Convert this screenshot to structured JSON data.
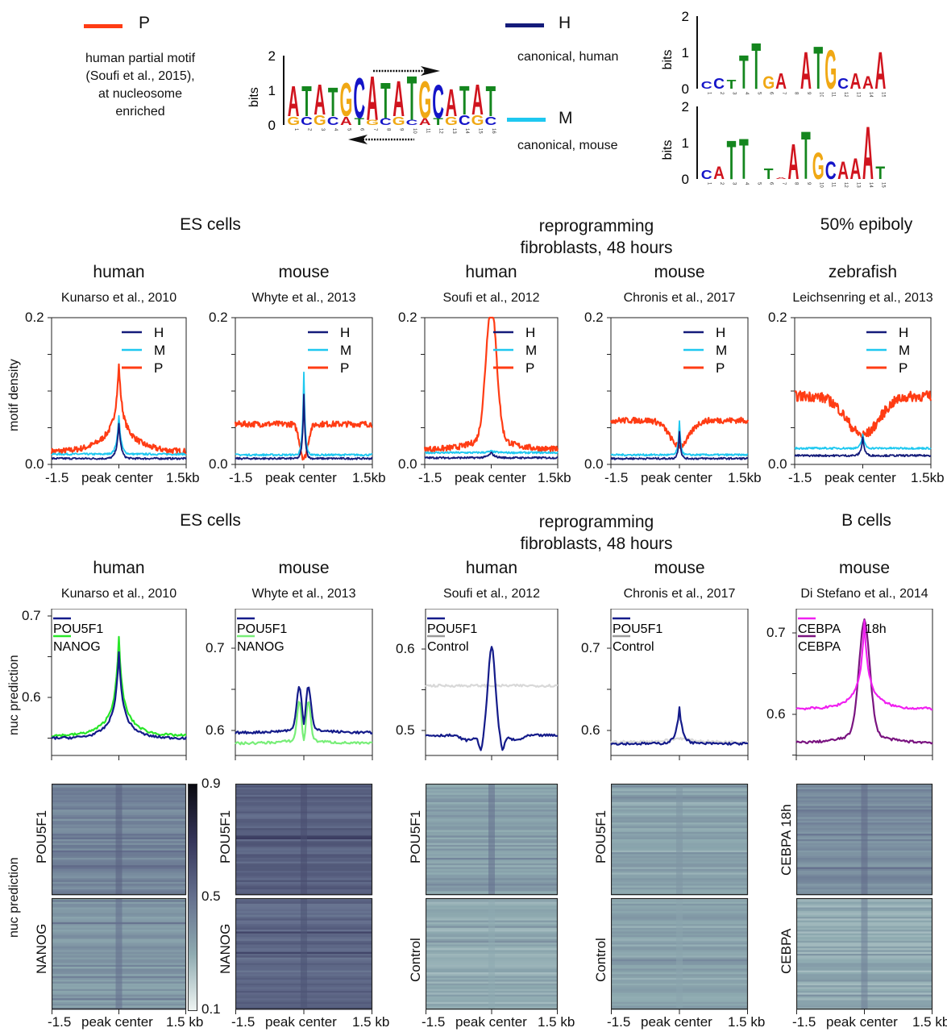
{
  "motifs": {
    "P": {
      "label": "P",
      "color": "#ff3c14",
      "description": [
        "human partial motif",
        "(Soufi et al., 2015),",
        "at nucleosome",
        "enriched"
      ],
      "logo": {
        "ylabel": "bits",
        "yticks": [
          "2",
          "1",
          "0"
        ],
        "sequence_top": "ATATGCATATGCATAT",
        "sequence_bottom": "GCGCATGCGCATGCGC",
        "positions": [
          "1",
          "2",
          "3",
          "4",
          "5",
          "6",
          "7",
          "8",
          "9",
          "10",
          "11",
          "12",
          "13",
          "14",
          "15",
          "16"
        ],
        "top_heights": [
          0.9,
          0.9,
          0.9,
          0.85,
          1.0,
          1.2,
          1.3,
          1.05,
          1.05,
          1.3,
          1.1,
          1.0,
          0.8,
          0.85,
          0.9,
          0.9
        ],
        "bottom_heights": [
          0.25,
          0.25,
          0.3,
          0.25,
          0.25,
          0.2,
          0.15,
          0.2,
          0.25,
          0.15,
          0.2,
          0.2,
          0.25,
          0.3,
          0.3,
          0.25
        ]
      }
    },
    "H": {
      "label": "H",
      "color": "#141b7a",
      "description": [
        "canonical, human"
      ],
      "logo": {
        "ylabel": "bits",
        "yticks": [
          "2",
          "1",
          "0"
        ],
        "sequence_top": "CCTTTGA-ATGCAAA",
        "positions": [
          "1",
          "2",
          "3",
          "4",
          "5",
          "6",
          "7",
          "8",
          "9",
          "10",
          "11",
          "12",
          "13",
          "14",
          "15"
        ],
        "top_heights": [
          0.2,
          0.3,
          0.25,
          0.95,
          1.3,
          0.35,
          0.45,
          0.0,
          1.05,
          1.2,
          1.1,
          0.3,
          0.45,
          0.35,
          1.05
        ]
      }
    },
    "M": {
      "label": "M",
      "color": "#1ec8f0",
      "description": [
        "canonical, mouse"
      ],
      "logo": {
        "ylabel": "bits",
        "yticks": [
          "2",
          "1",
          "0"
        ],
        "sequence_top": "CATT-TAATGCAAAT",
        "positions": [
          "1",
          "2",
          "3",
          "4",
          "5",
          "6",
          "7",
          "8",
          "9",
          "10",
          "11",
          "12",
          "13",
          "14",
          "15"
        ],
        "top_heights": [
          0.25,
          0.35,
          1.1,
          1.15,
          0.05,
          0.3,
          0.05,
          1.0,
          1.35,
          0.75,
          0.5,
          0.5,
          0.6,
          1.5,
          0.35
        ]
      }
    }
  },
  "row1": {
    "groups": [
      {
        "title": [
          "ES cells"
        ],
        "center_panel_index": 0.5
      },
      {
        "title": [
          "reprogramming",
          "fibroblasts, 48 hours"
        ],
        "center_panel_index": 2.5
      },
      {
        "title": [
          "50% epiboly"
        ],
        "center_panel_index": 4
      }
    ],
    "ylabel": "motif density"
  },
  "row2": {
    "groups": [
      {
        "title": [
          "ES cells"
        ]
      },
      {
        "title": [
          "reprogramming",
          "fibroblasts, 48 hours"
        ]
      },
      {
        "title": [
          "B cells"
        ]
      }
    ],
    "ylabel": "nuc prediction"
  },
  "heatmap_ylabel": "nuc prediction",
  "colorbar": {
    "ticks": [
      "0.9",
      "0.5",
      "0.1"
    ],
    "min": 0.1,
    "max": 0.9
  },
  "xaxis": {
    "left": "-1.5",
    "center": "peak center",
    "right_motif": "1.5kb",
    "right_heat": "1.5 kb"
  },
  "chart_data": [
    {
      "type": "line",
      "title": "human",
      "subtitle": "Kunarso et al., 2010",
      "xlabel": "peak center",
      "xticklabels": [
        "-1.5",
        "peak center",
        "1.5kb"
      ],
      "xlim": [
        -1.5,
        1.5
      ],
      "ylim": [
        0.0,
        0.2
      ],
      "yticklabels": [
        "0.2",
        "0.0"
      ],
      "ylabel": "motif density",
      "legend": "top-right",
      "series": [
        {
          "name": "H",
          "shape": "peak",
          "base": 0.008,
          "peak": 0.055,
          "width": 0.05
        },
        {
          "name": "M",
          "shape": "peak",
          "base": 0.014,
          "peak": 0.066,
          "width": 0.05
        },
        {
          "name": "P",
          "shape": "broad-peak",
          "base": 0.017,
          "peak": 0.135,
          "width": 0.35
        }
      ]
    },
    {
      "type": "line",
      "title": "mouse",
      "subtitle": "Whyte et al., 2013",
      "xticklabels": [
        "-1.5",
        "peak center",
        "1.5kb"
      ],
      "xlim": [
        -1.5,
        1.5
      ],
      "ylim": [
        0.0,
        0.2
      ],
      "yticklabels": [
        "0.2",
        "0.0"
      ],
      "legend": "top-right",
      "series": [
        {
          "name": "H",
          "shape": "peak",
          "base": 0.008,
          "peak": 0.095,
          "width": 0.03
        },
        {
          "name": "M",
          "shape": "peak",
          "base": 0.013,
          "peak": 0.125,
          "width": 0.03
        },
        {
          "name": "P",
          "shape": "dip",
          "base": 0.055,
          "peak": 0.008,
          "width": 0.12
        }
      ]
    },
    {
      "type": "line",
      "title": "human",
      "subtitle": "Soufi et al., 2012",
      "xticklabels": [
        "-1.5",
        "peak center",
        "1.5kb"
      ],
      "xlim": [
        -1.5,
        1.5
      ],
      "ylim": [
        0.0,
        0.2
      ],
      "yticklabels": [
        "0.2",
        "0.0"
      ],
      "legend": "top-right",
      "series": [
        {
          "name": "H",
          "shape": "peak",
          "base": 0.009,
          "peak": 0.016,
          "width": 0.08
        },
        {
          "name": "M",
          "shape": "flat",
          "base": 0.016,
          "peak": 0.018,
          "width": 0.1
        },
        {
          "name": "P",
          "shape": "sharp-peak",
          "base": 0.02,
          "peak": 0.195,
          "width": 0.12
        }
      ]
    },
    {
      "type": "line",
      "title": "mouse",
      "subtitle": "Chronis et al., 2017",
      "xticklabels": [
        "-1.5",
        "peak center",
        "1.5kb"
      ],
      "xlim": [
        -1.5,
        1.5
      ],
      "ylim": [
        0.0,
        0.2
      ],
      "yticklabels": [
        "0.2",
        "0.0"
      ],
      "legend": "top-right",
      "series": [
        {
          "name": "H",
          "shape": "peak",
          "base": 0.008,
          "peak": 0.045,
          "width": 0.03
        },
        {
          "name": "M",
          "shape": "peak",
          "base": 0.013,
          "peak": 0.058,
          "width": 0.03
        },
        {
          "name": "P",
          "shape": "dip",
          "base": 0.06,
          "peak": 0.025,
          "width": 0.3
        }
      ]
    },
    {
      "type": "line",
      "title": "zebrafish",
      "subtitle": "Leichsenring et al., 2013",
      "xticklabels": [
        "-1.5",
        "peak center",
        "1.5kb"
      ],
      "xlim": [
        -1.5,
        1.5
      ],
      "ylim": [
        0.0,
        0.2
      ],
      "yticklabels": [
        "0.2",
        "0.0"
      ],
      "legend": "top-right",
      "series": [
        {
          "name": "H",
          "shape": "peak",
          "base": 0.012,
          "peak": 0.037,
          "width": 0.04
        },
        {
          "name": "M",
          "shape": "peak",
          "base": 0.022,
          "peak": 0.042,
          "width": 0.04
        },
        {
          "name": "P",
          "shape": "dip",
          "base": 0.093,
          "peak": 0.04,
          "width": 0.5
        }
      ]
    },
    {
      "type": "line",
      "title": "human",
      "subtitle": "Kunarso et al., 2010",
      "ylabel": "nuc prediction",
      "yticklabels": [
        "0.7",
        "0.6"
      ],
      "ylim": [
        0.548,
        0.71
      ],
      "xlim": [
        -1.5,
        1.5
      ],
      "legend": "top-left",
      "series": [
        {
          "name": "POU5F1",
          "color": "#141b8a",
          "shape": "broad-peak",
          "base": 0.55,
          "peak": 0.655,
          "width": 0.25
        },
        {
          "name": "NANOG",
          "color": "#28e628",
          "shape": "broad-peak",
          "base": 0.553,
          "peak": 0.673,
          "width": 0.28
        }
      ]
    },
    {
      "type": "line",
      "title": "mouse",
      "subtitle": "Whyte et al., 2013",
      "yticklabels": [
        "0.7",
        "0.6"
      ],
      "ylim": [
        0.58,
        0.747
      ],
      "xlim": [
        -1.5,
        1.5
      ],
      "legend": "top-left",
      "series": [
        {
          "name": "POU5F1",
          "color": "#141b8a",
          "shape": "double-peak",
          "base": 0.597,
          "peak": 0.651,
          "width": 0.08
        },
        {
          "name": "NANOG",
          "color": "#78ee78",
          "shape": "double-peak",
          "base": 0.584,
          "peak": 0.633,
          "width": 0.07
        }
      ]
    },
    {
      "type": "line",
      "title": "human",
      "subtitle": "Soufi et al., 2012",
      "yticklabels": [
        "0.6",
        "0.5"
      ],
      "ylim": [
        0.47,
        0.648
      ],
      "xlim": [
        -1.5,
        1.5
      ],
      "legend": "top-left",
      "series": [
        {
          "name": "POU5F1",
          "color": "#141b8a",
          "shape": "sharp-peak-dip",
          "base": 0.494,
          "peak": 0.604,
          "width": 0.08
        },
        {
          "name": "Control",
          "color": "#d8d8d8",
          "shape": "flat",
          "base": 0.555,
          "peak": 0.555,
          "width": 0.1
        }
      ]
    },
    {
      "type": "line",
      "title": "mouse",
      "subtitle": "Chronis et al., 2017",
      "yticklabels": [
        "0.7",
        "0.6"
      ],
      "ylim": [
        0.57,
        0.747
      ],
      "xlim": [
        -1.5,
        1.5
      ],
      "legend": "top-left",
      "series": [
        {
          "name": "POU5F1",
          "color": "#141b8a",
          "shape": "broad-peak",
          "base": 0.584,
          "peak": 0.627,
          "width": 0.1
        },
        {
          "name": "Control",
          "color": "#d8d8d8",
          "shape": "flat",
          "base": 0.586,
          "peak": 0.591,
          "width": 0.3
        }
      ]
    },
    {
      "type": "line",
      "title": "mouse",
      "subtitle": "Di Stefano  et al., 2014",
      "yticklabels": [
        "0.7",
        "0.6"
      ],
      "ylim": [
        0.553,
        0.728
      ],
      "xlim": [
        -1.5,
        1.5
      ],
      "legend": "top-left",
      "series": [
        {
          "name": "CEBPA 18h",
          "color": "#f020f0",
          "shape": "broad-peak",
          "base": 0.607,
          "peak": 0.715,
          "width": 0.25
        },
        {
          "name": "CEBPA",
          "color": "#7a1480",
          "shape": "sharp-peak",
          "base": 0.565,
          "peak": 0.696,
          "width": 0.12
        }
      ]
    },
    {
      "type": "heatmap",
      "subtitle": "Kunarso et al., 2010",
      "rows": [
        "POU5F1",
        "NANOG"
      ],
      "xticklabels": [
        "-1.5",
        "peak center",
        "1.5 kb"
      ],
      "colorbar_range": [
        0.1,
        0.9
      ],
      "row_mean": [
        0.42,
        0.36
      ],
      "center_mean": [
        0.55,
        0.5
      ]
    },
    {
      "type": "heatmap",
      "subtitle": "Whyte et al., 2013",
      "rows": [
        "POU5F1",
        "NANOG"
      ],
      "xticklabels": [
        "-1.5",
        "peak center",
        "1.5 kb"
      ],
      "colorbar_range": [
        0.1,
        0.9
      ],
      "row_mean": [
        0.55,
        0.53
      ],
      "center_mean": [
        0.62,
        0.6
      ]
    },
    {
      "type": "heatmap",
      "subtitle": "Soufi et al., 2012",
      "rows": [
        "POU5F1",
        "Control"
      ],
      "xticklabels": [
        "-1.5",
        "peak center",
        "1.5 kb"
      ],
      "colorbar_range": [
        0.1,
        0.9
      ],
      "row_mean": [
        0.33,
        0.3
      ],
      "center_mean": [
        0.5,
        0.3
      ]
    },
    {
      "type": "heatmap",
      "subtitle": "Chronis et al., 2017",
      "rows": [
        "POU5F1",
        "Control"
      ],
      "xticklabels": [
        "-1.5",
        "peak center",
        "1.5 kb"
      ],
      "colorbar_range": [
        0.1,
        0.9
      ],
      "row_mean": [
        0.32,
        0.32
      ],
      "center_mean": [
        0.37,
        0.32
      ]
    },
    {
      "type": "heatmap",
      "subtitle": "Di Stefano  et al., 2014",
      "rows": [
        "CEBPA 18h",
        "CEBPA"
      ],
      "xticklabels": [
        "-1.5",
        "peak center",
        "1.5 kb"
      ],
      "colorbar_range": [
        0.1,
        0.9
      ],
      "row_mean": [
        0.4,
        0.3
      ],
      "center_mean": [
        0.52,
        0.45
      ]
    }
  ]
}
